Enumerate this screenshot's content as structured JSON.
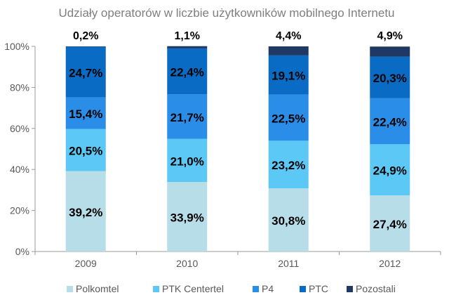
{
  "chart_data": {
    "type": "bar",
    "stacked": true,
    "title": "Udziały operatorów w liczbie użytkowników mobilnego Internetu",
    "categories": [
      "2009",
      "2010",
      "2011",
      "2012"
    ],
    "y_ticks": [
      "0%",
      "20%",
      "40%",
      "60%",
      "80%",
      "100%"
    ],
    "ylim": [
      0,
      100
    ],
    "legend_position": "bottom",
    "grid": false,
    "series": [
      {
        "name": "Polkomtel",
        "color": "#b7dde8",
        "values": [
          39.2,
          33.9,
          30.8,
          27.4
        ],
        "labels": [
          "39,2%",
          "33,9%",
          "30,8%",
          "27,4%"
        ]
      },
      {
        "name": "PTK Centertel",
        "color": "#5bc8f5",
        "values": [
          20.5,
          21.0,
          23.2,
          24.9
        ],
        "labels": [
          "20,5%",
          "21,0%",
          "23,2%",
          "24,9%"
        ]
      },
      {
        "name": "P4",
        "color": "#2a8ee8",
        "values": [
          15.4,
          21.7,
          22.5,
          22.4
        ],
        "labels": [
          "15,4%",
          "21,7%",
          "22,5%",
          "22,4%"
        ]
      },
      {
        "name": "PTC",
        "color": "#0a6bc4",
        "values": [
          24.7,
          22.4,
          19.1,
          20.3
        ],
        "labels": [
          "24,7%",
          "22,4%",
          "19,1%",
          "20,3%"
        ]
      },
      {
        "name": "Pozostali",
        "color": "#1f3864",
        "values": [
          0.2,
          1.1,
          4.4,
          4.9
        ],
        "labels": [
          "0,2%",
          "1,1%",
          "4,4%",
          "4,9%"
        ]
      }
    ]
  }
}
